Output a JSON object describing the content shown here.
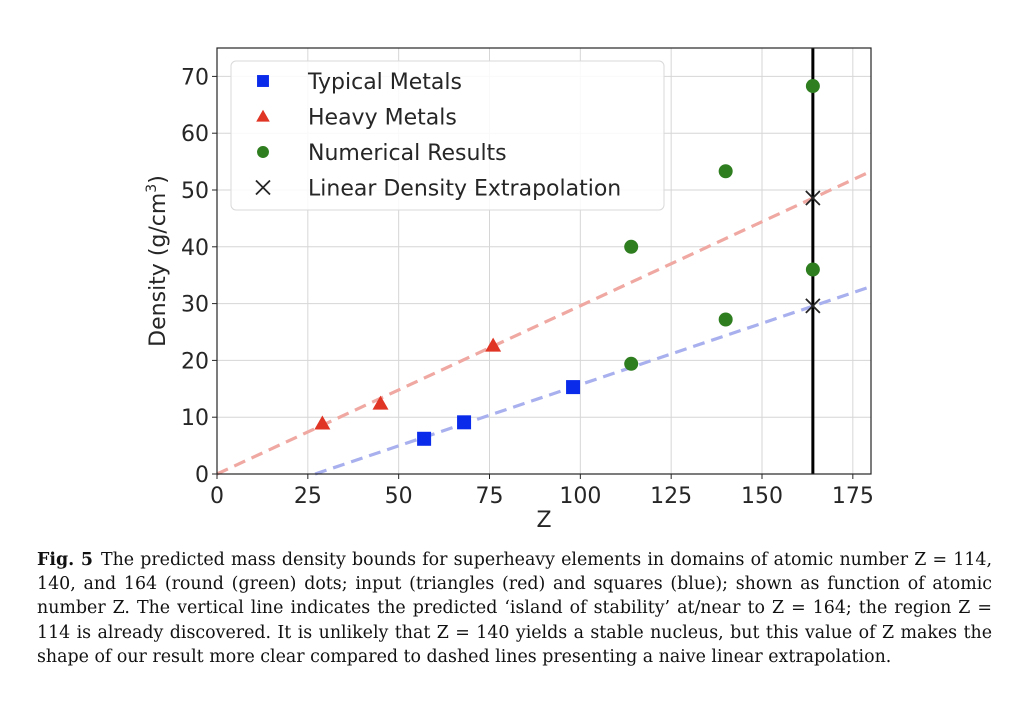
{
  "chart_data": {
    "type": "scatter",
    "title": "",
    "xlabel": "Z",
    "ylabel": "Density (g/cm³)",
    "ylabel_main": "Density (g/cm",
    "ylabel_sup": "3",
    "ylabel_end": ")",
    "xlim": [
      0,
      180
    ],
    "ylim": [
      0,
      75
    ],
    "xticks": [
      0,
      25,
      50,
      75,
      100,
      125,
      150,
      175
    ],
    "yticks": [
      0,
      10,
      20,
      30,
      40,
      50,
      60,
      70
    ],
    "grid": true,
    "legend_position": "top-left",
    "series": [
      {
        "name": "Typical Metals",
        "marker": "square",
        "color": "#0a2bea",
        "points": [
          [
            57,
            6.2
          ],
          [
            68,
            9.1
          ],
          [
            98,
            15.3
          ]
        ]
      },
      {
        "name": "Heavy Metals",
        "marker": "triangle",
        "color": "#e03525",
        "points": [
          [
            29,
            8.9
          ],
          [
            45,
            12.4
          ],
          [
            76,
            22.6
          ]
        ]
      },
      {
        "name": "Numerical Results",
        "marker": "circle",
        "color": "#2e7d1f",
        "points": [
          [
            114,
            19.4
          ],
          [
            114,
            40.0
          ],
          [
            140,
            27.2
          ],
          [
            140,
            53.3
          ],
          [
            164,
            36.0
          ],
          [
            164,
            68.3
          ]
        ]
      },
      {
        "name": "Linear Density Extrapolation",
        "marker": "x",
        "color": "#262626",
        "points": [
          [
            164,
            48.6
          ],
          [
            164,
            29.6
          ]
        ]
      }
    ],
    "lines": [
      {
        "name": "heavy-metals-fit",
        "style": "dashed",
        "color": "#f0a8a2",
        "from": [
          0,
          0
        ],
        "to": [
          180,
          53.3
        ]
      },
      {
        "name": "typical-metals-fit",
        "style": "dashed",
        "color": "#a9b0ee",
        "from": [
          27,
          0
        ],
        "to": [
          180,
          33.0
        ]
      },
      {
        "name": "island-of-stability",
        "style": "solid",
        "color": "#000000",
        "x": 164
      }
    ]
  },
  "caption": {
    "label": "Fig. 5",
    "text": "The predicted mass density bounds for superheavy elements in domains of atomic number Z = 114, 140, and 164 (round (green) dots; input (triangles (red) and squares (blue); shown as function of atomic number Z. The vertical line indicates the predicted ‘island of stability’ at/near to Z = 164; the region Z = 114 is already discovered. It is unlikely that Z = 140 yields a stable nucleus, but this value of Z makes the shape of our result more clear compared to dashed lines presenting a naive linear extrapolation."
  }
}
